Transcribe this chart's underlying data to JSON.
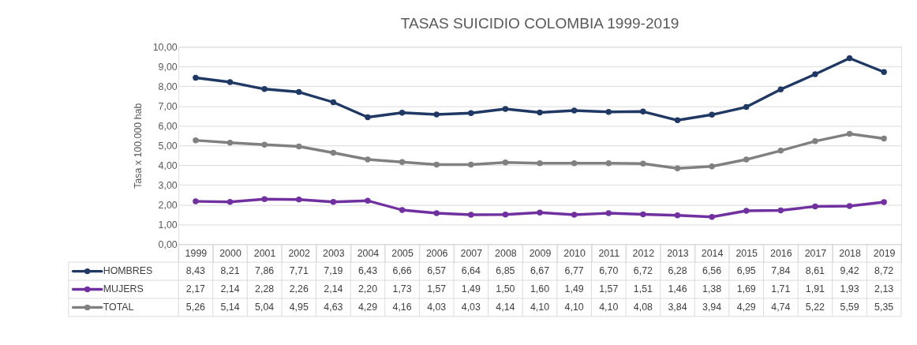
{
  "chart_data": {
    "type": "line",
    "title": "TASAS SUICIDIO COLOMBIA 1999-2019",
    "ylabel": "Tasa x 100.000 hab",
    "categories": [
      "1999",
      "2000",
      "2001",
      "2002",
      "2003",
      "2004",
      "2005",
      "2006",
      "2007",
      "2008",
      "2009",
      "2010",
      "2011",
      "2012",
      "2013",
      "2014",
      "2015",
      "2016",
      "2017",
      "2018",
      "2019"
    ],
    "series": [
      {
        "name": "HOMBRES",
        "color": "#203864",
        "values": [
          8.43,
          8.21,
          7.86,
          7.71,
          7.19,
          6.43,
          6.66,
          6.57,
          6.64,
          6.85,
          6.67,
          6.77,
          6.7,
          6.72,
          6.28,
          6.56,
          6.95,
          7.84,
          8.61,
          9.42,
          8.72
        ],
        "value_labels": [
          "8,43",
          "8,21",
          "7,86",
          "7,71",
          "7,19",
          "6,43",
          "6,66",
          "6,57",
          "6,64",
          "6,85",
          "6,67",
          "6,77",
          "6,70",
          "6,72",
          "6,28",
          "6,56",
          "6,95",
          "7,84",
          "8,61",
          "9,42",
          "8,72"
        ]
      },
      {
        "name": "MUJERS",
        "color": "#7030a0",
        "values": [
          2.17,
          2.14,
          2.28,
          2.26,
          2.14,
          2.2,
          1.73,
          1.57,
          1.49,
          1.5,
          1.6,
          1.49,
          1.57,
          1.51,
          1.46,
          1.38,
          1.69,
          1.71,
          1.91,
          1.93,
          2.13
        ],
        "value_labels": [
          "2,17",
          "2,14",
          "2,28",
          "2,26",
          "2,14",
          "2,20",
          "1,73",
          "1,57",
          "1,49",
          "1,50",
          "1,60",
          "1,49",
          "1,57",
          "1,51",
          "1,46",
          "1,38",
          "1,69",
          "1,71",
          "1,91",
          "1,93",
          "2,13"
        ]
      },
      {
        "name": "TOTAL",
        "color": "#808080",
        "values": [
          5.26,
          5.14,
          5.04,
          4.95,
          4.63,
          4.29,
          4.16,
          4.03,
          4.03,
          4.14,
          4.1,
          4.1,
          4.1,
          4.08,
          3.84,
          3.94,
          4.29,
          4.74,
          5.22,
          5.59,
          5.35
        ],
        "value_labels": [
          "5,26",
          "5,14",
          "5,04",
          "4,95",
          "4,63",
          "4,29",
          "4,16",
          "4,03",
          "4,03",
          "4,14",
          "4,10",
          "4,10",
          "4,10",
          "4,08",
          "3,84",
          "3,94",
          "4,29",
          "4,74",
          "5,22",
          "5,59",
          "5,35"
        ]
      }
    ],
    "ylim": [
      0,
      10
    ],
    "yticks": [
      {
        "value": 0,
        "label": "0,00"
      },
      {
        "value": 1,
        "label": "1,00"
      },
      {
        "value": 2,
        "label": "2,00"
      },
      {
        "value": 3,
        "label": "3,00"
      },
      {
        "value": 4,
        "label": "4,00"
      },
      {
        "value": 5,
        "label": "5,00"
      },
      {
        "value": 6,
        "label": "6,00"
      },
      {
        "value": 7,
        "label": "7,00"
      },
      {
        "value": 8,
        "label": "8,00"
      },
      {
        "value": 9,
        "label": "9,00"
      },
      {
        "value": 10,
        "label": "10,00"
      }
    ],
    "grid": "y",
    "legend": "bottom",
    "marker": "circle",
    "line_style": "solid"
  }
}
